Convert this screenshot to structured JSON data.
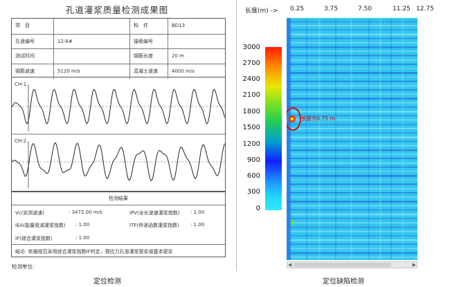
{
  "report": {
    "title": "孔道灌浆质量检测成果图",
    "info_rows": [
      [
        "项　目",
        "",
        "构　件",
        "BD13"
      ],
      [
        "孔道编号",
        "12-8#",
        "锚索编号",
        ""
      ],
      [
        "测试时间",
        "",
        "钢筋长度",
        "20 m"
      ],
      [
        "钢筋波速",
        "5120 m/s",
        "混凝土波速",
        "4000 m/s"
      ]
    ],
    "channels": [
      "CH-1",
      "CH-2"
    ],
    "results_title": "检测结果",
    "results": {
      "vc_label": "Vc(实测波速)",
      "vc_value": ": 3472.00 m/s",
      "ipv_label": "IPV(全长波速灌浆指数)",
      "ipv_value": ": 1.00",
      "iea_label": "IEA(能量衰减灌浆指数)",
      "iea_value": ": 1.00",
      "itf_label": "ITF(传递函数灌浆指数)",
      "itf_value": ": 1.00",
      "if_label": "IF(综合灌浆指数)",
      "if_value": ": 1.00",
      "conclusion": "结论: 依据规范采用综合灌浆指数IF判定，预应力孔道灌浆密实或基本密实"
    },
    "unit_label": "检测单位:",
    "caption": "定位检测"
  },
  "viewer": {
    "axis_title": "长度(m) ->",
    "x_ticks": [
      "0.25",
      "3.75",
      "7.50",
      "11.25",
      "12.75"
    ],
    "colorbar_ticks": [
      "3000",
      "2700",
      "2400",
      "2100",
      "1800",
      "1500",
      "1200",
      "900",
      "600",
      "300",
      "0"
    ],
    "defect_label": "长度为0.75 m",
    "scroll_left": "◀",
    "scroll_right": "▶",
    "caption": "定位缺陷检测",
    "colors": {
      "background": "#34c6ee",
      "stripe_dark": "#2060e0",
      "stripe_light": "#8fe4fb",
      "defect_ring": "#e00000"
    }
  }
}
